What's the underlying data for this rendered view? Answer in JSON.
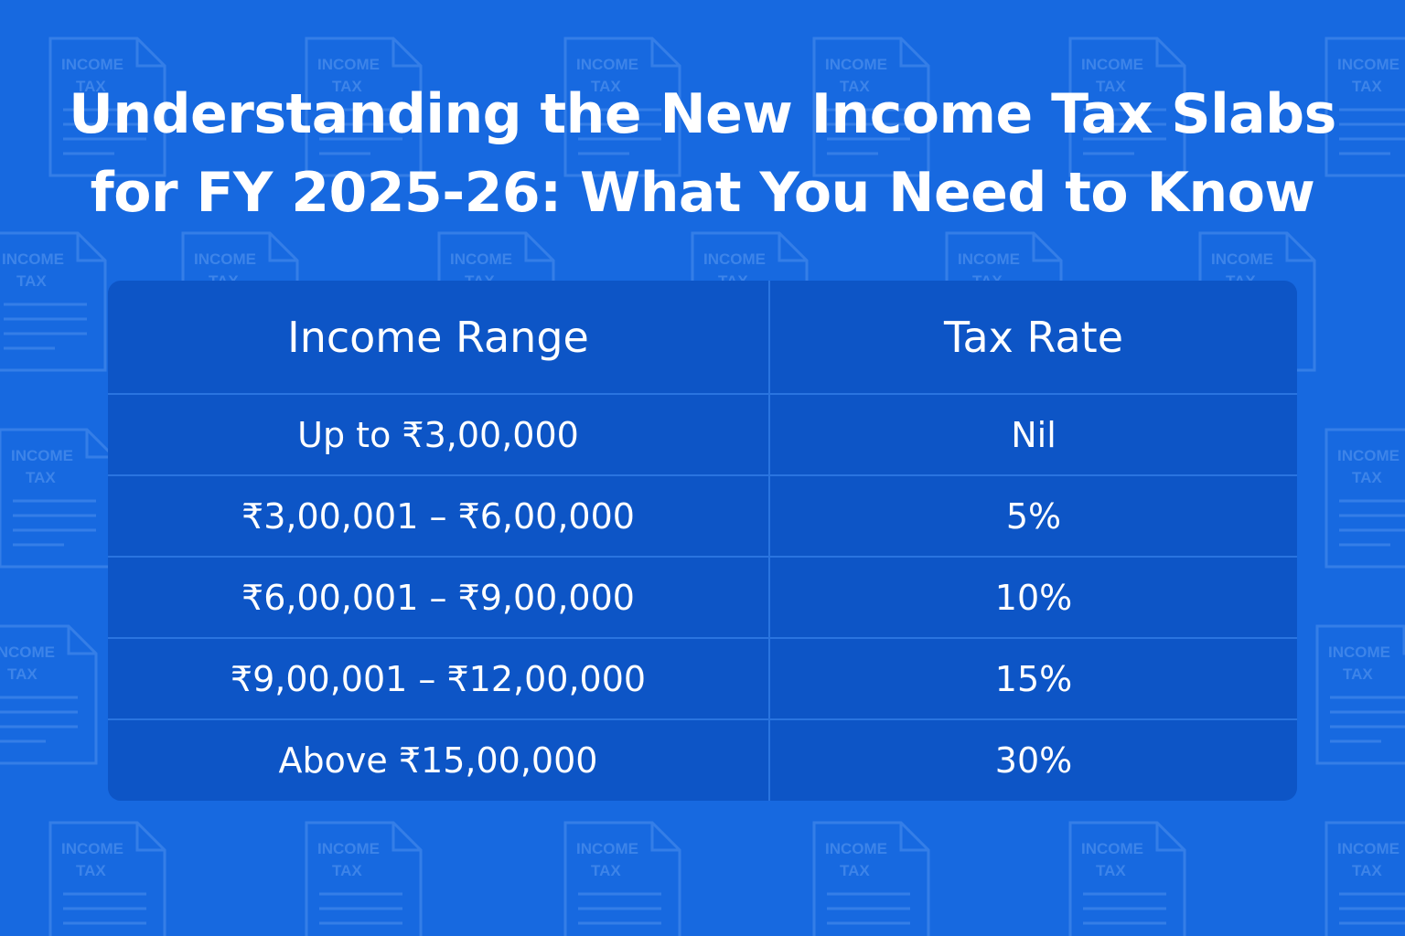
{
  "title": {
    "line1": "Understanding the New Income Tax Slabs",
    "line2": "for FY 2025-26: What You Need to Know"
  },
  "background": {
    "icon_label_top": "INCOME",
    "icon_label_bottom": "TAX",
    "color": "#1769e0"
  },
  "table": {
    "headers": [
      "Income Range",
      "Tax Rate"
    ],
    "rows": [
      {
        "range": "Up to ₹3,00,000",
        "rate": "Nil"
      },
      {
        "range": "₹3,00,001 – ₹6,00,000",
        "rate": "5%"
      },
      {
        "range": "₹6,00,001 – ₹9,00,000",
        "rate": "10%"
      },
      {
        "range": "₹9,00,001 – ₹12,00,000",
        "rate": "15%"
      },
      {
        "range": "Above ₹15,00,000",
        "rate": "30%"
      }
    ]
  }
}
